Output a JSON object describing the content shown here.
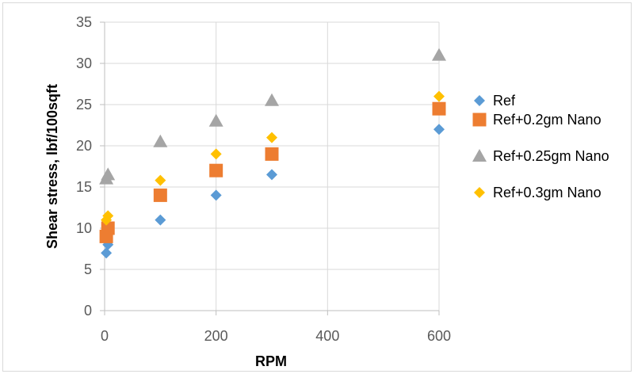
{
  "chart_data": {
    "type": "scatter",
    "title": "",
    "xlabel": "RPM",
    "ylabel": "Shear stress, lbf/100sqft",
    "xlim": [
      0,
      600
    ],
    "ylim": [
      0,
      35
    ],
    "xticks": [
      0,
      200,
      400,
      600
    ],
    "yticks": [
      0,
      5,
      10,
      15,
      20,
      25,
      30,
      35
    ],
    "xtick_labels": [
      "0",
      "200",
      "400",
      "600"
    ],
    "ytick_labels": [
      "0",
      "5",
      "10",
      "15",
      "20",
      "25",
      "30",
      "35"
    ],
    "grid": true,
    "legend_position": "right",
    "series": [
      {
        "name": "Ref",
        "marker": "diamond",
        "color": "#5b9bd5",
        "points": [
          [
            3,
            7
          ],
          [
            6,
            8
          ],
          [
            100,
            11
          ],
          [
            200,
            14
          ],
          [
            300,
            16.5
          ],
          [
            600,
            22
          ]
        ]
      },
      {
        "name": "Ref+0.2gm Nano",
        "marker": "square",
        "color": "#ed7d31",
        "points": [
          [
            3,
            9
          ],
          [
            6,
            10
          ],
          [
            100,
            14
          ],
          [
            200,
            17
          ],
          [
            300,
            19
          ],
          [
            600,
            24.5
          ]
        ]
      },
      {
        "name": "Ref+0.25gm Nano",
        "marker": "triangle",
        "color": "#a5a5a5",
        "points": [
          [
            3,
            16
          ],
          [
            6,
            16.5
          ],
          [
            100,
            20.5
          ],
          [
            200,
            23
          ],
          [
            300,
            25.5
          ],
          [
            600,
            31
          ]
        ]
      },
      {
        "name": "Ref+0.3gm Nano",
        "marker": "diamond",
        "color": "#ffc000",
        "points": [
          [
            3,
            11
          ],
          [
            6,
            11.5
          ],
          [
            100,
            15.8
          ],
          [
            200,
            19
          ],
          [
            300,
            21
          ],
          [
            600,
            26
          ]
        ]
      }
    ]
  }
}
